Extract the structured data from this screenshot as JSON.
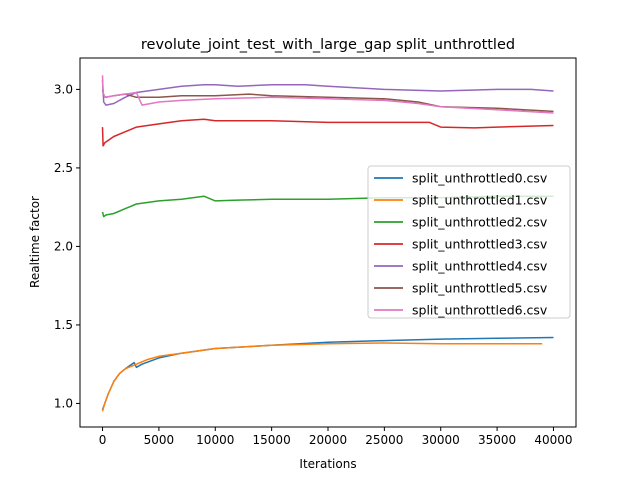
{
  "chart_data": {
    "type": "line",
    "title": "revolute_joint_test_with_large_gap split_unthrottled",
    "xlabel": "Iterations",
    "ylabel": "Realtime factor",
    "xlim": [
      -2000,
      42000
    ],
    "ylim": [
      0.85,
      3.2
    ],
    "xticks": [
      0,
      5000,
      10000,
      15000,
      20000,
      25000,
      30000,
      35000,
      40000
    ],
    "yticks": [
      1.0,
      1.5,
      2.0,
      2.5,
      3.0
    ],
    "xtick_labels": [
      "0",
      "5000",
      "10000",
      "15000",
      "20000",
      "25000",
      "30000",
      "35000",
      "40000"
    ],
    "ytick_labels": [
      "1.0",
      "1.5",
      "2.0",
      "2.5",
      "3.0"
    ],
    "grid": false,
    "legend_position": "center-right",
    "series": [
      {
        "name": "split_unthrottled0.csv",
        "color": "#1f77b4",
        "x": [
          0,
          200,
          500,
          1000,
          1500,
          2000,
          2800,
          3000,
          3500,
          5000,
          7000,
          10000,
          15000,
          20000,
          25000,
          30000,
          35000,
          40000
        ],
        "y": [
          0.96,
          1.0,
          1.06,
          1.14,
          1.19,
          1.22,
          1.26,
          1.23,
          1.25,
          1.29,
          1.32,
          1.35,
          1.37,
          1.39,
          1.4,
          1.41,
          1.415,
          1.42
        ]
      },
      {
        "name": "split_unthrottled1.csv",
        "color": "#ff7f0e",
        "x": [
          0,
          200,
          500,
          1000,
          1500,
          2000,
          3000,
          4000,
          5000,
          7000,
          10000,
          15000,
          20000,
          25000,
          30000,
          35000,
          39000
        ],
        "y": [
          0.95,
          1.0,
          1.06,
          1.14,
          1.19,
          1.22,
          1.25,
          1.28,
          1.3,
          1.32,
          1.35,
          1.37,
          1.38,
          1.385,
          1.38,
          1.38,
          1.38
        ]
      },
      {
        "name": "split_unthrottled2.csv",
        "color": "#2ca02c",
        "x": [
          0,
          100,
          300,
          1000,
          2000,
          3000,
          5000,
          7000,
          9000,
          10000,
          12000,
          15000,
          20000,
          25000,
          30000,
          35000,
          40000
        ],
        "y": [
          2.22,
          2.19,
          2.2,
          2.21,
          2.24,
          2.27,
          2.29,
          2.3,
          2.32,
          2.29,
          2.295,
          2.3,
          2.3,
          2.31,
          2.31,
          2.32,
          2.32
        ]
      },
      {
        "name": "split_unthrottled3.csv",
        "color": "#d62728",
        "x": [
          0,
          50,
          200,
          1000,
          2000,
          3000,
          5000,
          7000,
          9000,
          10000,
          15000,
          20000,
          25000,
          29000,
          30000,
          33000,
          35000,
          40000
        ],
        "y": [
          2.76,
          2.64,
          2.66,
          2.7,
          2.73,
          2.76,
          2.78,
          2.8,
          2.81,
          2.8,
          2.8,
          2.79,
          2.79,
          2.79,
          2.76,
          2.755,
          2.76,
          2.77
        ]
      },
      {
        "name": "split_unthrottled4.csv",
        "color": "#9467bd",
        "x": [
          0,
          100,
          300,
          1000,
          2000,
          3000,
          5000,
          7000,
          9000,
          10000,
          12000,
          15000,
          18000,
          20000,
          25000,
          30000,
          35000,
          38000,
          40000
        ],
        "y": [
          3.06,
          2.92,
          2.9,
          2.91,
          2.95,
          2.98,
          3.0,
          3.02,
          3.03,
          3.03,
          3.02,
          3.03,
          3.03,
          3.02,
          3.0,
          2.99,
          3.0,
          3.0,
          2.99
        ]
      },
      {
        "name": "split_unthrottled5.csv",
        "color": "#8c564b",
        "x": [
          0,
          100,
          300,
          1000,
          2000,
          3000,
          5000,
          7000,
          10000,
          13000,
          15000,
          20000,
          25000,
          28000,
          30000,
          35000,
          40000
        ],
        "y": [
          3.0,
          2.96,
          2.95,
          2.96,
          2.97,
          2.95,
          2.95,
          2.96,
          2.96,
          2.97,
          2.96,
          2.95,
          2.94,
          2.92,
          2.89,
          2.88,
          2.86
        ]
      },
      {
        "name": "split_unthrottled6.csv",
        "color": "#e377c2",
        "x": [
          0,
          50,
          200,
          1000,
          2000,
          3000,
          3500,
          5000,
          7000,
          10000,
          15000,
          20000,
          25000,
          28000,
          30000,
          35000,
          40000
        ],
        "y": [
          3.09,
          2.98,
          2.95,
          2.96,
          2.97,
          2.98,
          2.9,
          2.92,
          2.93,
          2.94,
          2.95,
          2.94,
          2.93,
          2.91,
          2.89,
          2.87,
          2.85
        ]
      }
    ]
  }
}
